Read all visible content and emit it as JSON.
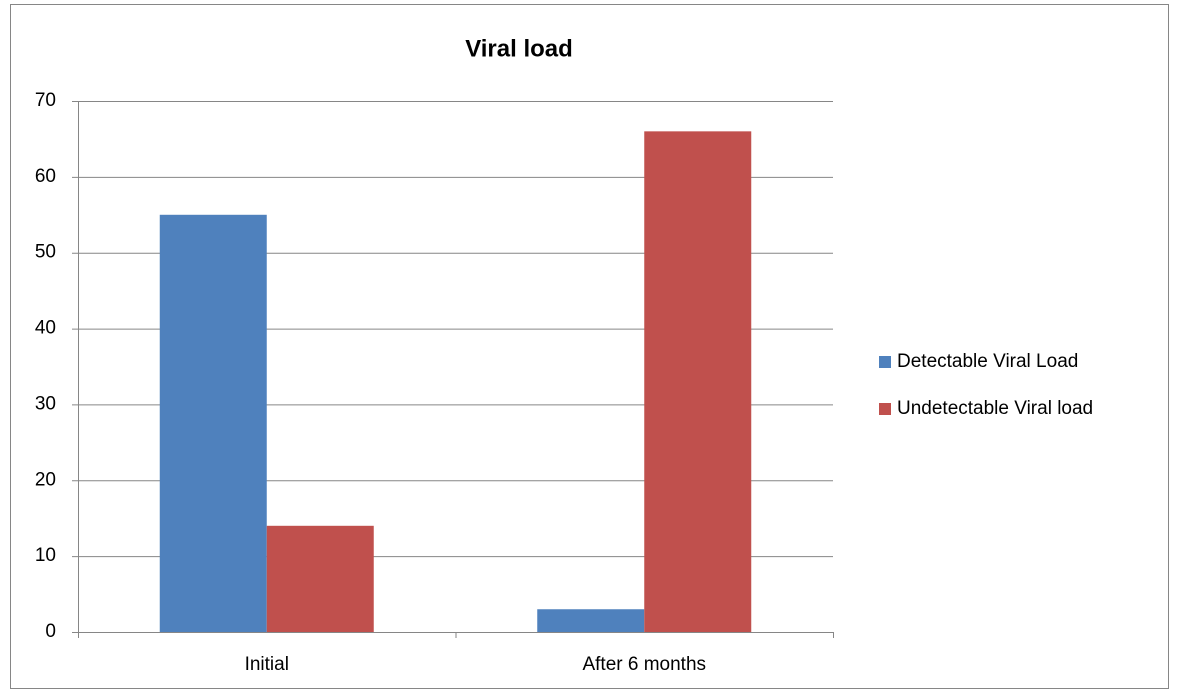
{
  "chart_data": {
    "type": "bar",
    "title": "Viral load",
    "categories": [
      "Initial",
      "After 6 months"
    ],
    "series": [
      {
        "name": "Detectable Viral Load",
        "color": "#4f81bd",
        "values": [
          55,
          3
        ]
      },
      {
        "name": "Undetectable Viral load",
        "color": "#c0504d",
        "values": [
          14,
          66
        ]
      }
    ],
    "ylim": [
      0,
      70
    ],
    "yticks": [
      0,
      10,
      20,
      30,
      40,
      50,
      60,
      70
    ],
    "grid": true,
    "legend": "right"
  }
}
